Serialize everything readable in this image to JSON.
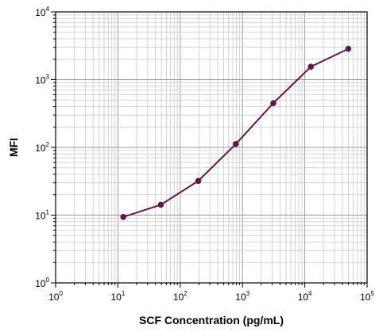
{
  "chart_data": {
    "type": "line",
    "title": "",
    "xlabel": "SCF Concentration (pg/mL)",
    "ylabel": "MFI",
    "xscale": "log",
    "yscale": "log",
    "xlim": [
      1,
      100000
    ],
    "ylim": [
      1,
      10000
    ],
    "grid": true,
    "x_ticks": [
      {
        "base": "10",
        "exp": "0",
        "value": 1
      },
      {
        "base": "10",
        "exp": "1",
        "value": 10
      },
      {
        "base": "10",
        "exp": "2",
        "value": 100
      },
      {
        "base": "10",
        "exp": "3",
        "value": 1000
      },
      {
        "base": "10",
        "exp": "4",
        "value": 10000
      },
      {
        "base": "10",
        "exp": "5",
        "value": 100000
      }
    ],
    "y_ticks": [
      {
        "base": "10",
        "exp": "0",
        "value": 1
      },
      {
        "base": "10",
        "exp": "1",
        "value": 10
      },
      {
        "base": "10",
        "exp": "2",
        "value": 100
      },
      {
        "base": "10",
        "exp": "3",
        "value": 1000
      },
      {
        "base": "10",
        "exp": "4",
        "value": 10000
      }
    ],
    "series": [
      {
        "color": "#5a1a4a",
        "x": [
          12.2,
          48.8,
          195,
          781,
          3125,
          12500,
          50000
        ],
        "y": [
          9.4,
          14.2,
          32,
          112,
          450,
          1550,
          2850
        ]
      }
    ]
  }
}
